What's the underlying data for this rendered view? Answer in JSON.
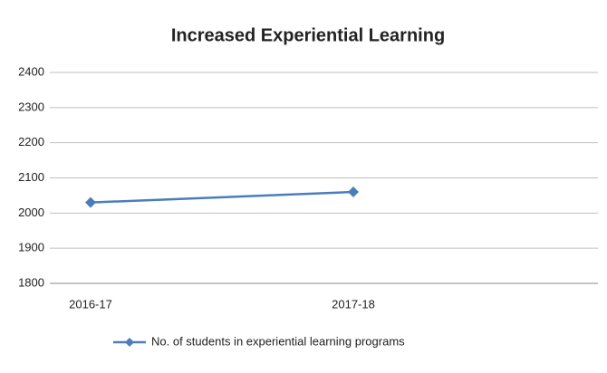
{
  "chart_data": {
    "type": "line",
    "title": "Increased Experiential Learning",
    "categories": [
      "2016-17",
      "2017-18"
    ],
    "series": [
      {
        "name": "No. of students in experiential learning programs",
        "color": "#4a7ebb",
        "values": [
          2030,
          2060
        ]
      }
    ],
    "ylim": [
      1800,
      2400
    ],
    "yticks": [
      1800,
      1900,
      2000,
      2100,
      2200,
      2300,
      2400
    ],
    "grid": true,
    "legend": "bottom"
  }
}
